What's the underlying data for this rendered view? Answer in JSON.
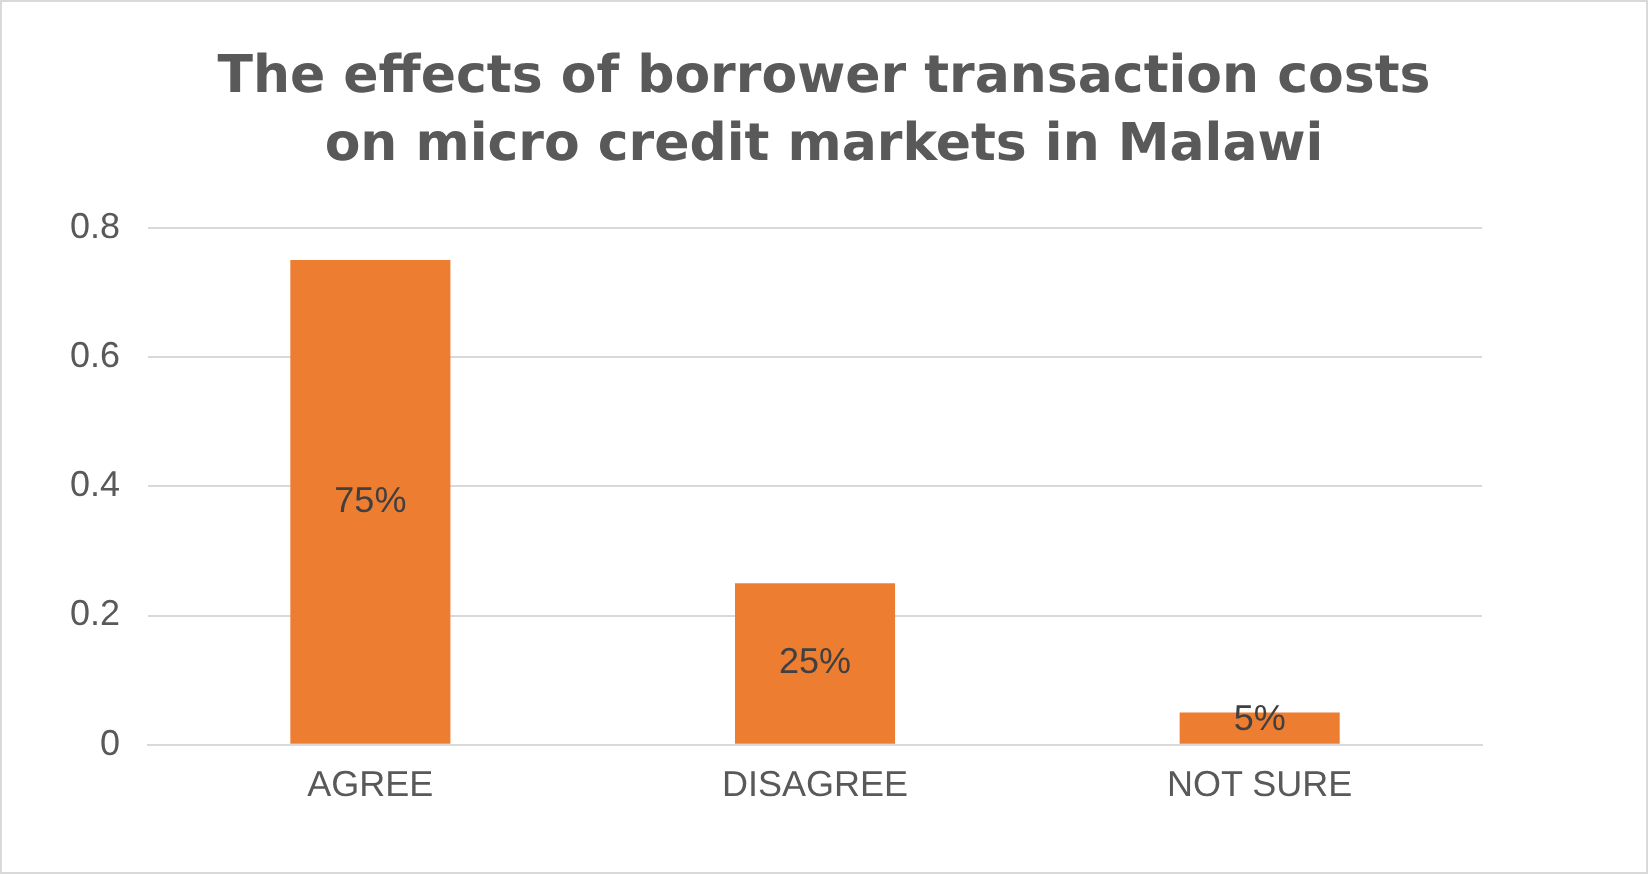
{
  "chart_data": {
    "type": "bar",
    "title": "The effects of borrower transaction costs on micro credit markets in Malawi",
    "categories": [
      "AGREE",
      "DISAGREE",
      "NOT SURE"
    ],
    "values": [
      0.75,
      0.25,
      0.05
    ],
    "value_labels": [
      "75%",
      "25%",
      "5%"
    ],
    "color": "#ed7d31",
    "ylim": [
      0,
      0.8
    ],
    "yticks": [
      0,
      0.2,
      0.4,
      0.6,
      0.8
    ],
    "grid": "y"
  }
}
